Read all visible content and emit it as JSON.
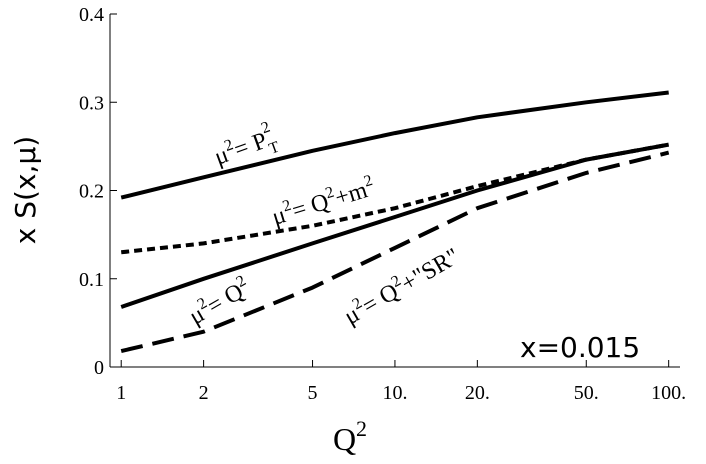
{
  "chart_data": {
    "type": "line",
    "x_label": [
      "Q",
      "2"
    ],
    "y_label": "x S(x,μ)",
    "log_x": true,
    "x": [
      1,
      2,
      5,
      10,
      20,
      50,
      100
    ],
    "series": [
      {
        "color": "#000000",
        "dash": "solid",
        "values": [
          0.192,
          0.215,
          0.245,
          0.265,
          0.283,
          0.3,
          0.311
        ]
      },
      {
        "color": "#000000",
        "dash": "dotted",
        "values": [
          0.13,
          0.14,
          0.16,
          0.18,
          0.205,
          0.235,
          0.252
        ]
      },
      {
        "color": "#000000",
        "dash": "solid",
        "values": [
          0.068,
          0.1,
          0.14,
          0.17,
          0.2,
          0.235,
          0.252
        ]
      },
      {
        "color": "#000000",
        "dash": "dashed",
        "values": [
          0.018,
          0.04,
          0.09,
          0.135,
          0.18,
          0.22,
          0.243
        ]
      }
    ],
    "annotations": [
      [
        "μ",
        "2",
        "= P",
        "T",
        "2"
      ],
      [
        "μ",
        "2",
        "= Q",
        "2",
        "+m",
        "2"
      ],
      [
        "μ",
        "2",
        "= Q",
        "2"
      ],
      [
        "μ",
        "2",
        "= Q",
        "2",
        "+\"SR\""
      ],
      [
        "x=0.015"
      ]
    ],
    "xlim": [
      0.91,
      110
    ],
    "ylim": [
      0,
      0.4
    ],
    "xticks": [
      1,
      2,
      5,
      {
        "value": 10,
        "label": "10."
      },
      {
        "value": 20,
        "label": "20."
      },
      {
        "value": 50,
        "label": "50."
      },
      {
        "value": 100,
        "label": "100."
      }
    ],
    "yticks": [
      0,
      0.1,
      0.2,
      0.3,
      0.4
    ]
  }
}
